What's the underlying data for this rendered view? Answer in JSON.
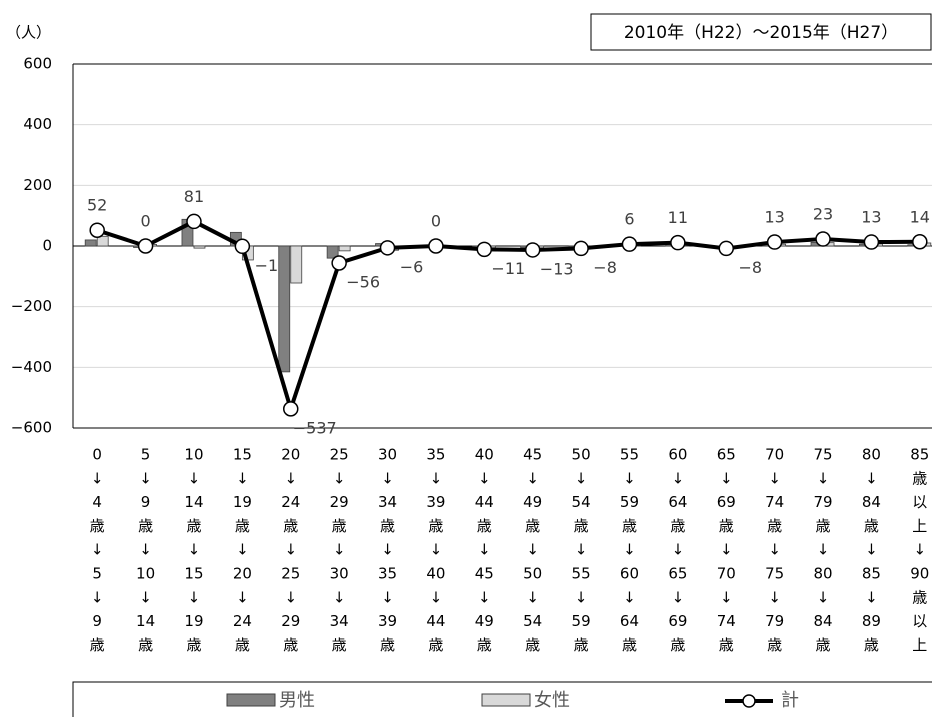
{
  "chart_data": {
    "type": "bar_line",
    "subtitle": "2010年（H22）～2015年（H27）",
    "y_label": "（人）",
    "categories": [
      [
        "0",
        "↓",
        "4",
        "歳",
        "↓",
        "5",
        "↓",
        "9",
        "歳"
      ],
      [
        "5",
        "↓",
        "9",
        "歳",
        "↓",
        "10",
        "↓",
        "14",
        "歳"
      ],
      [
        "10",
        "↓",
        "14",
        "歳",
        "↓",
        "15",
        "↓",
        "19",
        "歳"
      ],
      [
        "15",
        "↓",
        "19",
        "歳",
        "↓",
        "20",
        "↓",
        "24",
        "歳"
      ],
      [
        "20",
        "↓",
        "24",
        "歳",
        "↓",
        "25",
        "↓",
        "29",
        "歳"
      ],
      [
        "25",
        "↓",
        "29",
        "歳",
        "↓",
        "30",
        "↓",
        "34",
        "歳"
      ],
      [
        "30",
        "↓",
        "34",
        "歳",
        "↓",
        "35",
        "↓",
        "39",
        "歳"
      ],
      [
        "35",
        "↓",
        "39",
        "歳",
        "↓",
        "40",
        "↓",
        "44",
        "歳"
      ],
      [
        "40",
        "↓",
        "44",
        "歳",
        "↓",
        "45",
        "↓",
        "49",
        "歳"
      ],
      [
        "45",
        "↓",
        "49",
        "歳",
        "↓",
        "50",
        "↓",
        "54",
        "歳"
      ],
      [
        "50",
        "↓",
        "54",
        "歳",
        "↓",
        "55",
        "↓",
        "59",
        "歳"
      ],
      [
        "55",
        "↓",
        "59",
        "歳",
        "↓",
        "60",
        "↓",
        "64",
        "歳"
      ],
      [
        "60",
        "↓",
        "64",
        "歳",
        "↓",
        "65",
        "↓",
        "69",
        "歳"
      ],
      [
        "65",
        "↓",
        "69",
        "歳",
        "↓",
        "70",
        "↓",
        "74",
        "歳"
      ],
      [
        "70",
        "↓",
        "74",
        "歳",
        "↓",
        "75",
        "↓",
        "79",
        "歳"
      ],
      [
        "75",
        "↓",
        "79",
        "歳",
        "↓",
        "80",
        "↓",
        "84",
        "歳"
      ],
      [
        "80",
        "↓",
        "84",
        "歳",
        "↓",
        "85",
        "↓",
        "89",
        "歳"
      ],
      [
        "85",
        "歳",
        "以",
        "上",
        "↓",
        "90",
        "歳",
        "以",
        "上"
      ]
    ],
    "series": [
      {
        "name": "男性",
        "type": "bar",
        "color": "#808080",
        "values": [
          20,
          -5,
          88,
          45,
          -415,
          -40,
          8,
          2,
          -5,
          -6,
          -4,
          3,
          6,
          -4,
          7,
          12,
          6,
          4
        ]
      },
      {
        "name": "女性",
        "type": "bar",
        "color": "#d9d9d9",
        "values": [
          32,
          5,
          -7,
          -46,
          -122,
          -16,
          -14,
          -2,
          -6,
          -7,
          -4,
          3,
          5,
          -4,
          6,
          11,
          7,
          10
        ]
      },
      {
        "name": "計",
        "type": "line",
        "color": "#000000",
        "values": [
          52,
          0,
          81,
          -1,
          -537,
          -56,
          -6,
          0,
          -11,
          -13,
          -8,
          6,
          11,
          -8,
          13,
          23,
          13,
          14
        ],
        "value_labels": [
          "52",
          "0",
          "81",
          "−1",
          "−537",
          "−56",
          "−6",
          "0",
          "−11",
          "−13",
          "−8",
          "6",
          "11",
          "−8",
          "13",
          "23",
          "13",
          "14"
        ]
      }
    ],
    "ylim": [
      -600,
      600
    ],
    "yticks": [
      {
        "value": -600,
        "label": "−600"
      },
      {
        "value": -400,
        "label": "−400"
      },
      {
        "value": -200,
        "label": "−200"
      },
      0,
      200,
      400,
      600
    ],
    "grid": true
  }
}
